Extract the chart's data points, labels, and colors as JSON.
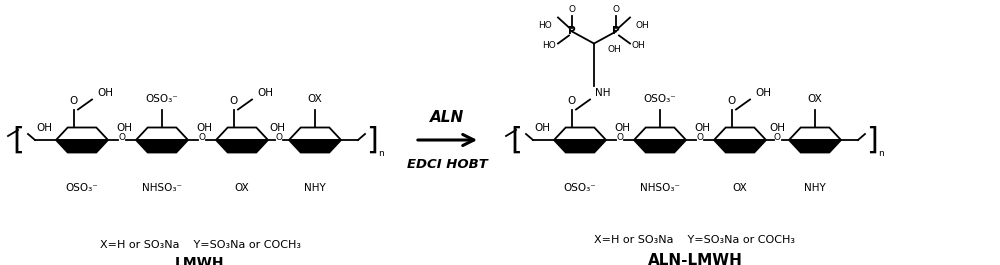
{
  "bg_color": "#ffffff",
  "figsize": [
    10.0,
    2.65
  ],
  "dpi": 100,
  "arrow_label_top": "ALN",
  "arrow_label_bottom": "EDCI HOBT",
  "lmwh_label": "LMWH",
  "aln_lmwh_label": "ALN-LMWH",
  "left_caption": "X=H or SO₃Na    Y=SO₃Na or COCH₃",
  "right_caption": "X=H or SO₃Na    Y=SO₃Na or COCH₃"
}
